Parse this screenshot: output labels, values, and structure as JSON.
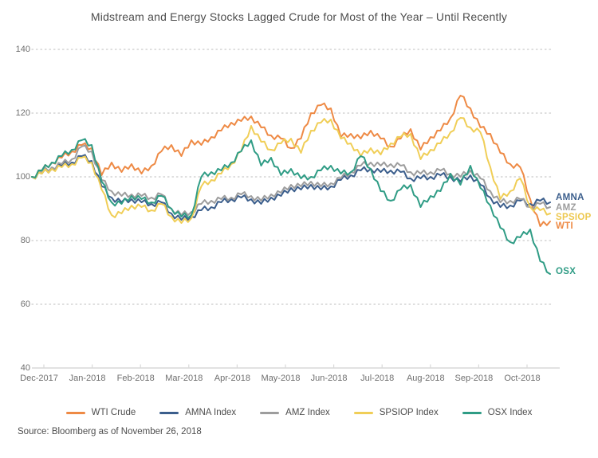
{
  "title": "Midstream and Energy Stocks Lagged Crude for Most of the Year – Until Recently",
  "source": "Source: Bloomberg as of November 26, 2018",
  "colors": {
    "wti": "#EE8A45",
    "amna": "#3B5E8C",
    "amz": "#9D9D9D",
    "spsiop": "#F0CE57",
    "osx": "#2F9C85",
    "grid": "#c9c9c9",
    "baseline": "#d9d9d9"
  },
  "legend": [
    {
      "label": "WTI Crude",
      "color": "#EE8A45"
    },
    {
      "label": "AMNA Index",
      "color": "#3B5E8C"
    },
    {
      "label": "AMZ Index",
      "color": "#9D9D9D"
    },
    {
      "label": "SPSIOP Index",
      "color": "#F0CE57"
    },
    {
      "label": "OSX Index",
      "color": "#2F9C85"
    }
  ],
  "end_labels": [
    {
      "text": "AMNA",
      "color": "#3B5E8C",
      "value": 93.5
    },
    {
      "text": "AMZ",
      "color": "#9D9D9D",
      "value": 90.2
    },
    {
      "text": "SPSIOP",
      "color": "#EDC84E",
      "value": 87.2
    },
    {
      "text": "WTI",
      "color": "#EE8A45",
      "value": 84.6
    },
    {
      "text": "OSX",
      "color": "#2F9C85",
      "value": 70.3
    }
  ],
  "chart_data": {
    "type": "line",
    "title": "Midstream and Energy Stocks Lagged Crude for Most of the Year – Until Recently",
    "xlabel": "",
    "ylabel": "",
    "x_labels": [
      "Dec-2017",
      "Jan-2018",
      "Feb-2018",
      "Mar-2018",
      "Apr-2018",
      "May-2018",
      "Jun-2018",
      "Jul-2018",
      "Aug-2018",
      "Sep-2018",
      "Oct-2018"
    ],
    "x_unit": "weekly samples, Dec 2017 through Nov 26 2018, indexed to 100",
    "ylim": [
      40,
      140
    ],
    "yticks": [
      40,
      60,
      80,
      100,
      120,
      140
    ],
    "grid": "dotted horizontal",
    "legend_position": "bottom",
    "series": [
      {
        "name": "WTI Crude",
        "color": "#EE8A45",
        "values": [
          100,
          102,
          104.5,
          106,
          108,
          110,
          109,
          100.5,
          104.5,
          101.5,
          104,
          101,
          103.5,
          108,
          110,
          106.5,
          111.5,
          110,
          112.5,
          114.5,
          117,
          117.5,
          119,
          115.5,
          113,
          112,
          109,
          112,
          120,
          122.5,
          121.5,
          112.5,
          113.5,
          112,
          114.5,
          112,
          109.5,
          112,
          115,
          108.5,
          112.5,
          114.5,
          118.5,
          125.5,
          121.5,
          115.5,
          113.5,
          107.5,
          104,
          103,
          93,
          84.5,
          86
        ]
      },
      {
        "name": "AMNA Index",
        "color": "#3B5E8C",
        "values": [
          100,
          101,
          102.5,
          103.5,
          104.5,
          106.5,
          105,
          97,
          93.5,
          92,
          93,
          92,
          91.5,
          92,
          88.5,
          86.5,
          87.5,
          89.5,
          90.5,
          92,
          93,
          93.5,
          93,
          91.5,
          93.5,
          94,
          96.5,
          96,
          97.5,
          96,
          97,
          99,
          100.5,
          102,
          102.5,
          101.5,
          102,
          101.5,
          99.5,
          99.5,
          100,
          100.5,
          100,
          98.5,
          100.5,
          97.5,
          93.5,
          90.5,
          91,
          92.5,
          91.5,
          92.5,
          92
        ]
      },
      {
        "name": "AMZ Index",
        "color": "#9D9D9D",
        "values": [
          100,
          101.5,
          103,
          104,
          105.5,
          109.5,
          108,
          99,
          95.5,
          94,
          94.5,
          94,
          93.5,
          94.5,
          90,
          88,
          89,
          91.5,
          92.5,
          93,
          93.5,
          94.5,
          94,
          92.5,
          94.5,
          95,
          97.5,
          97,
          98.5,
          97,
          98,
          99.5,
          101.5,
          103.5,
          104.5,
          103.5,
          104,
          103.5,
          101.5,
          101,
          101.5,
          102,
          101,
          100,
          102,
          99.5,
          95.5,
          92,
          92.5,
          93,
          90.5,
          91.5,
          90.5
        ]
      },
      {
        "name": "SPSIOP Index",
        "color": "#F0CE57",
        "values": [
          100,
          101,
          102.5,
          103,
          104,
          106,
          104.5,
          96,
          88,
          88.5,
          91,
          90.5,
          89.5,
          91.5,
          87.5,
          85.5,
          87,
          97,
          99,
          101,
          104,
          108,
          116,
          111,
          108.5,
          110.5,
          112,
          107.5,
          114.5,
          117,
          118,
          112,
          110.5,
          106.5,
          109,
          107,
          110.5,
          112.5,
          113.5,
          105.5,
          108.5,
          110.5,
          114,
          118.5,
          115.5,
          114,
          103,
          93,
          95.5,
          99.5,
          90.5,
          89.5,
          88.5
        ]
      },
      {
        "name": "OSX Index",
        "color": "#2F9C85",
        "values": [
          100,
          102,
          104.5,
          106.5,
          108.5,
          111.5,
          110,
          98.5,
          92,
          91.5,
          94,
          93,
          92,
          94,
          90,
          87.5,
          88,
          100,
          101.5,
          102,
          104.5,
          108,
          111.5,
          103.5,
          106,
          100.5,
          102.5,
          99.5,
          100,
          102,
          103.5,
          101,
          101.5,
          106.5,
          102.5,
          95.5,
          92.5,
          96,
          97.5,
          90.5,
          94,
          95.5,
          101,
          97.5,
          103.5,
          96.5,
          91,
          84,
          79.5,
          81,
          83.5,
          73.5,
          69.5
        ]
      }
    ]
  }
}
